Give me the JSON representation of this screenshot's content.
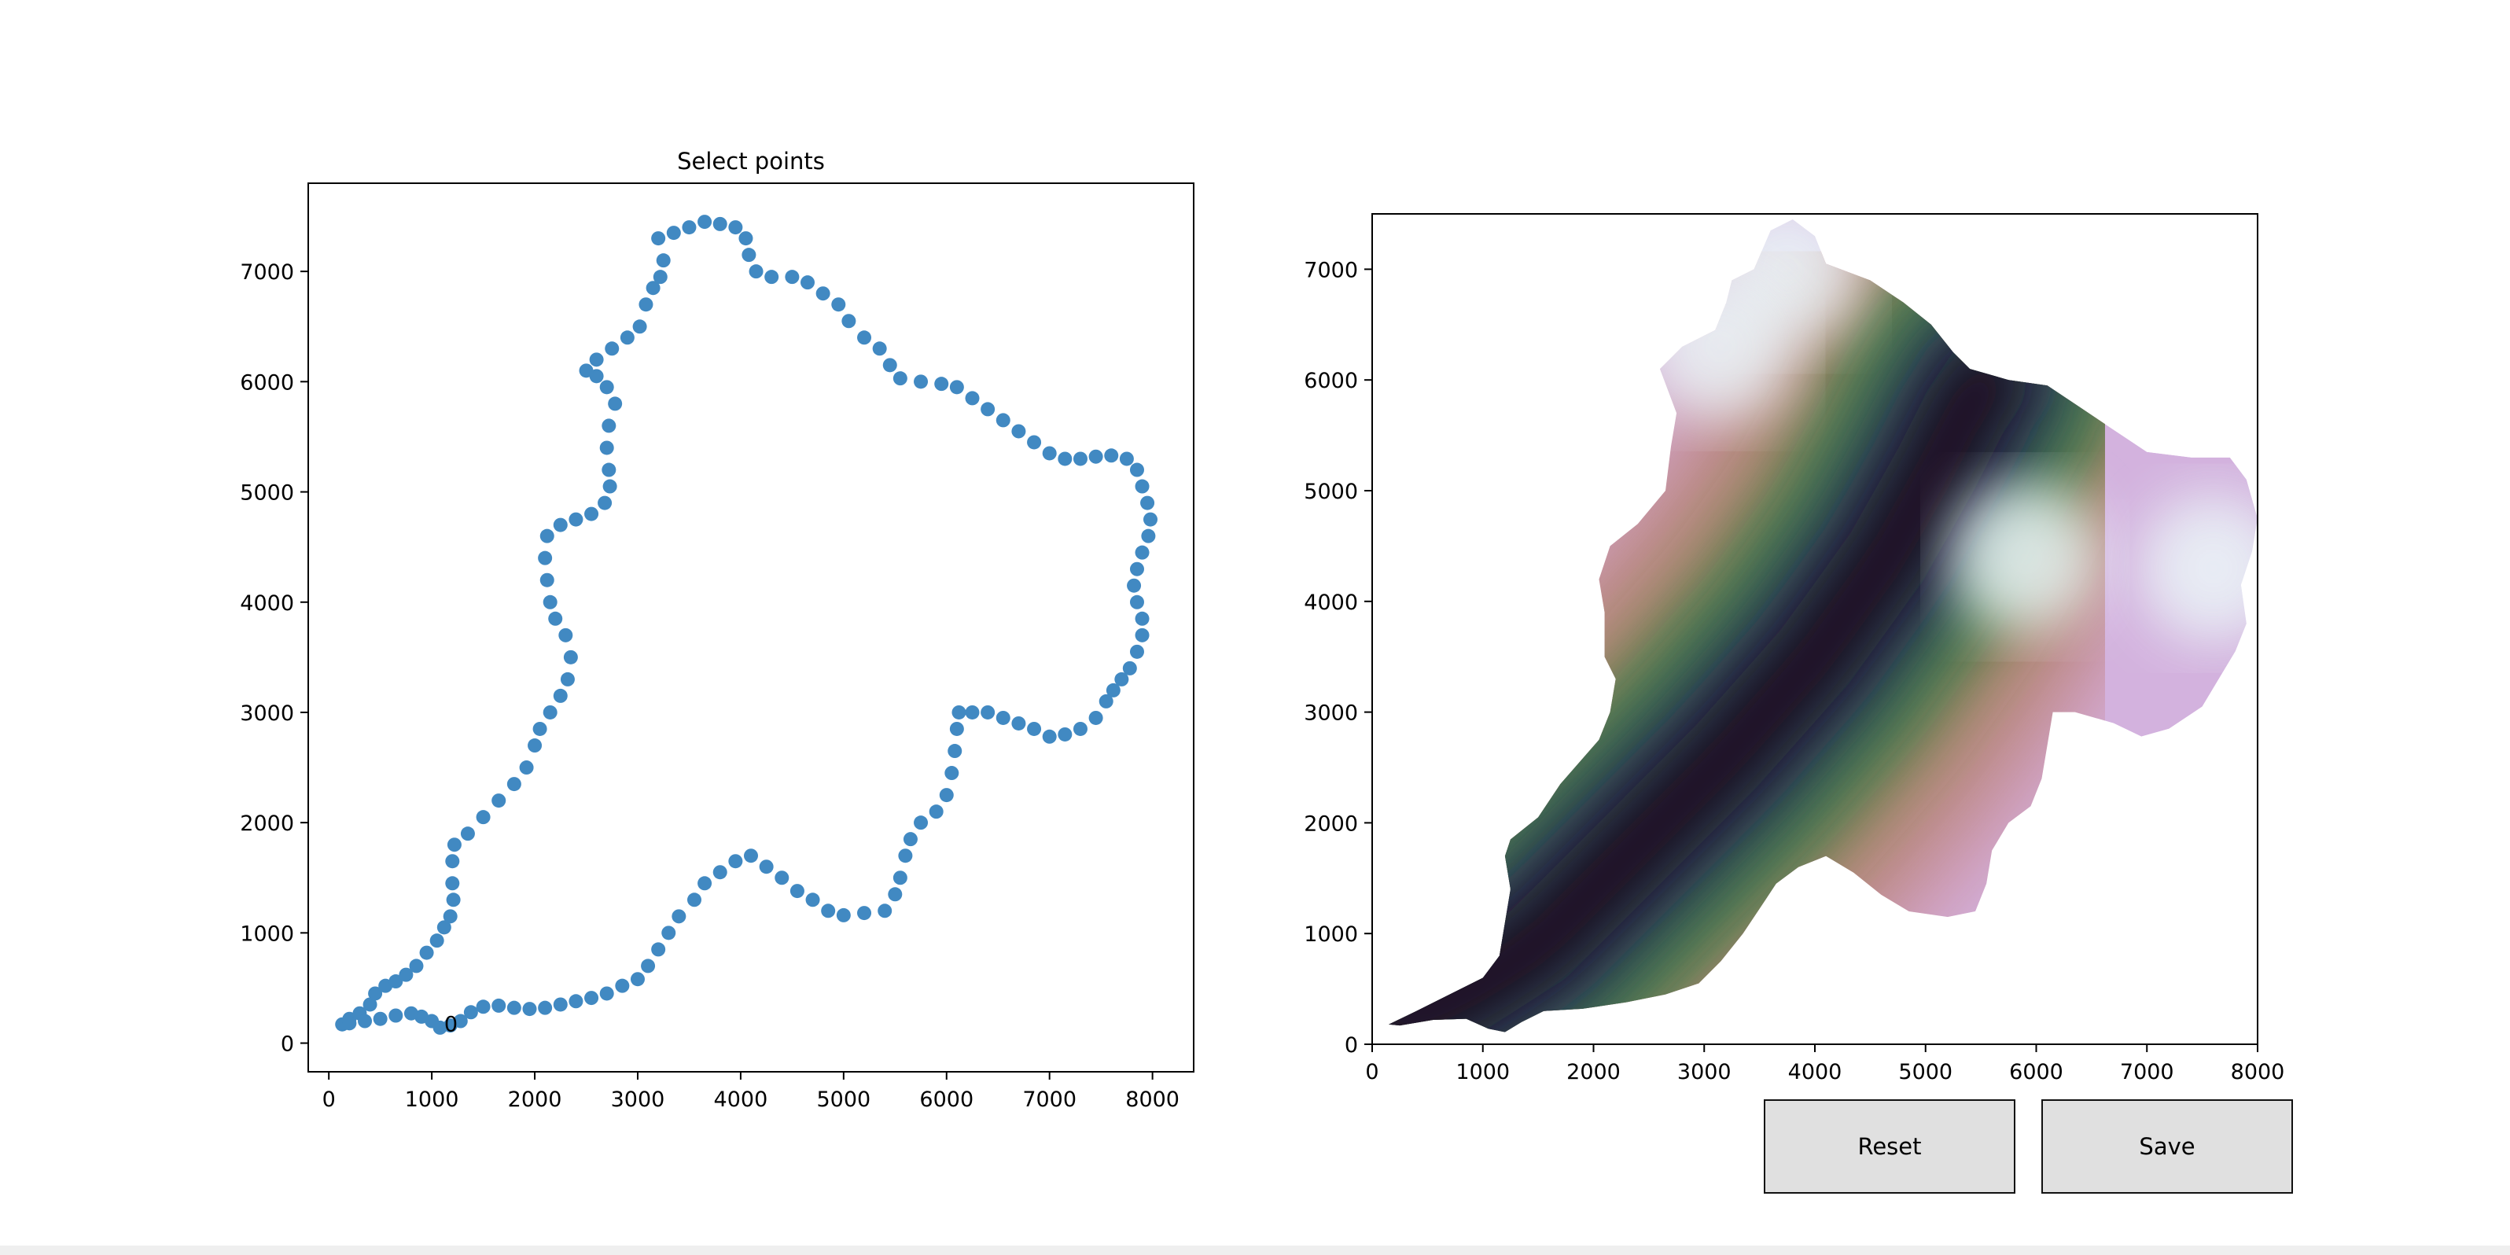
{
  "window": {
    "title": ""
  },
  "buttons": {
    "reset_label": "Reset",
    "save_label": "Save"
  },
  "colors": {
    "marker": "#4189c2",
    "axes": "#000000"
  },
  "chart_data": [
    {
      "type": "scatter",
      "title": "Select points",
      "xlabel": "",
      "ylabel": "",
      "xlim": [
        -200,
        8400
      ],
      "ylim": [
        -260,
        7800
      ],
      "xticks": [
        0,
        1000,
        2000,
        3000,
        4000,
        5000,
        6000,
        7000,
        8000
      ],
      "yticks": [
        0,
        1000,
        2000,
        3000,
        4000,
        5000,
        6000,
        7000
      ],
      "grid": false,
      "annotations": [
        {
          "text": "0",
          "x": 1120,
          "y": 180
        }
      ],
      "marker_color": "#4189c2",
      "series": [
        {
          "values": [
            [
              130,
              170
            ],
            [
              200,
              220
            ],
            [
              300,
              270
            ],
            [
              400,
              350
            ],
            [
              450,
              450
            ],
            [
              550,
              520
            ],
            [
              650,
              560
            ],
            [
              750,
              620
            ],
            [
              850,
              700
            ],
            [
              950,
              820
            ],
            [
              1050,
              930
            ],
            [
              1120,
              1050
            ],
            [
              1180,
              1150
            ],
            [
              1210,
              1300
            ],
            [
              1200,
              1450
            ],
            [
              1200,
              1650
            ],
            [
              1220,
              1800
            ],
            [
              1350,
              1900
            ],
            [
              1500,
              2050
            ],
            [
              1650,
              2200
            ],
            [
              1800,
              2350
            ],
            [
              1920,
              2500
            ],
            [
              2000,
              2700
            ],
            [
              2050,
              2850
            ],
            [
              2150,
              3000
            ],
            [
              2250,
              3150
            ],
            [
              2320,
              3300
            ],
            [
              2350,
              3500
            ],
            [
              2300,
              3700
            ],
            [
              2200,
              3850
            ],
            [
              2150,
              4000
            ],
            [
              2120,
              4200
            ],
            [
              2100,
              4400
            ],
            [
              2120,
              4600
            ],
            [
              2250,
              4700
            ],
            [
              2400,
              4750
            ],
            [
              2550,
              4800
            ],
            [
              2680,
              4900
            ],
            [
              2730,
              5050
            ],
            [
              2720,
              5200
            ],
            [
              2700,
              5400
            ],
            [
              2720,
              5600
            ],
            [
              2780,
              5800
            ],
            [
              2700,
              5950
            ],
            [
              2600,
              6050
            ],
            [
              2500,
              6100
            ],
            [
              2600,
              6200
            ],
            [
              2750,
              6300
            ],
            [
              2900,
              6400
            ],
            [
              3020,
              6500
            ],
            [
              3080,
              6700
            ],
            [
              3150,
              6850
            ],
            [
              3220,
              6950
            ],
            [
              3250,
              7100
            ],
            [
              3200,
              7300
            ],
            [
              3350,
              7350
            ],
            [
              3500,
              7400
            ],
            [
              3650,
              7450
            ],
            [
              3800,
              7430
            ],
            [
              3950,
              7400
            ],
            [
              4050,
              7300
            ],
            [
              4080,
              7150
            ],
            [
              4150,
              7000
            ],
            [
              4300,
              6950
            ],
            [
              4500,
              6950
            ],
            [
              4650,
              6900
            ],
            [
              4800,
              6800
            ],
            [
              4950,
              6700
            ],
            [
              5050,
              6550
            ],
            [
              5200,
              6400
            ],
            [
              5350,
              6300
            ],
            [
              5450,
              6150
            ],
            [
              5550,
              6030
            ],
            [
              5750,
              6000
            ],
            [
              5950,
              5980
            ],
            [
              6100,
              5950
            ],
            [
              6250,
              5850
            ],
            [
              6400,
              5750
            ],
            [
              6550,
              5650
            ],
            [
              6700,
              5550
            ],
            [
              6850,
              5450
            ],
            [
              7000,
              5350
            ],
            [
              7150,
              5300
            ],
            [
              7300,
              5300
            ],
            [
              7450,
              5320
            ],
            [
              7600,
              5330
            ],
            [
              7750,
              5300
            ],
            [
              7850,
              5200
            ],
            [
              7900,
              5050
            ],
            [
              7950,
              4900
            ],
            [
              7980,
              4750
            ],
            [
              7960,
              4600
            ],
            [
              7900,
              4450
            ],
            [
              7850,
              4300
            ],
            [
              7820,
              4150
            ],
            [
              7850,
              4000
            ],
            [
              7900,
              3850
            ],
            [
              7900,
              3700
            ],
            [
              7850,
              3550
            ],
            [
              7780,
              3400
            ],
            [
              7700,
              3300
            ],
            [
              7620,
              3200
            ],
            [
              7550,
              3100
            ],
            [
              7450,
              2950
            ],
            [
              7300,
              2850
            ],
            [
              7150,
              2800
            ],
            [
              7000,
              2780
            ],
            [
              6850,
              2850
            ],
            [
              6700,
              2900
            ],
            [
              6550,
              2950
            ],
            [
              6400,
              3000
            ],
            [
              6250,
              3000
            ],
            [
              6120,
              3000
            ],
            [
              6100,
              2850
            ],
            [
              6080,
              2650
            ],
            [
              6050,
              2450
            ],
            [
              6000,
              2250
            ],
            [
              5900,
              2100
            ],
            [
              5750,
              2000
            ],
            [
              5650,
              1850
            ],
            [
              5600,
              1700
            ],
            [
              5550,
              1500
            ],
            [
              5500,
              1350
            ],
            [
              5400,
              1200
            ],
            [
              5200,
              1180
            ],
            [
              5000,
              1160
            ],
            [
              4850,
              1200
            ],
            [
              4700,
              1300
            ],
            [
              4550,
              1380
            ],
            [
              4400,
              1500
            ],
            [
              4250,
              1600
            ],
            [
              4100,
              1700
            ],
            [
              3950,
              1650
            ],
            [
              3800,
              1550
            ],
            [
              3650,
              1450
            ],
            [
              3550,
              1300
            ],
            [
              3400,
              1150
            ],
            [
              3300,
              1000
            ],
            [
              3200,
              850
            ],
            [
              3100,
              700
            ],
            [
              3000,
              580
            ],
            [
              2850,
              520
            ],
            [
              2700,
              450
            ],
            [
              2550,
              410
            ],
            [
              2400,
              380
            ],
            [
              2250,
              350
            ],
            [
              2100,
              320
            ],
            [
              1950,
              310
            ],
            [
              1800,
              320
            ],
            [
              1650,
              340
            ],
            [
              1500,
              330
            ],
            [
              1380,
              280
            ],
            [
              1280,
              200
            ],
            [
              1180,
              160
            ],
            [
              1080,
              140
            ],
            [
              1000,
              200
            ],
            [
              900,
              240
            ],
            [
              800,
              270
            ],
            [
              650,
              250
            ],
            [
              500,
              220
            ],
            [
              350,
              200
            ],
            [
              200,
              180
            ]
          ]
        }
      ]
    },
    {
      "type": "heatmap",
      "title": "",
      "xlabel": "",
      "ylabel": "",
      "xlim": [
        0,
        8000
      ],
      "ylim": [
        0,
        7500
      ],
      "xticks": [
        0,
        1000,
        2000,
        3000,
        4000,
        5000,
        6000,
        7000,
        8000
      ],
      "yticks": [
        0,
        1000,
        2000,
        3000,
        4000,
        5000,
        6000,
        7000
      ],
      "grid": false,
      "colormap": "cubehelix",
      "colormap_stops": [
        "#1a1020",
        "#2e4a5b",
        "#4d7d4e",
        "#a08760",
        "#d08ba0",
        "#d3b2de",
        "#ebf6f8"
      ],
      "outline": [
        [
          150,
          180
        ],
        [
          400,
          300
        ],
        [
          700,
          450
        ],
        [
          1000,
          600
        ],
        [
          1150,
          800
        ],
        [
          1200,
          1100
        ],
        [
          1250,
          1400
        ],
        [
          1200,
          1700
        ],
        [
          1250,
          1850
        ],
        [
          1500,
          2050
        ],
        [
          1700,
          2350
        ],
        [
          2050,
          2750
        ],
        [
          2150,
          3000
        ],
        [
          2200,
          3300
        ],
        [
          2100,
          3500
        ],
        [
          2100,
          3900
        ],
        [
          2050,
          4200
        ],
        [
          2150,
          4500
        ],
        [
          2400,
          4700
        ],
        [
          2650,
          5000
        ],
        [
          2700,
          5400
        ],
        [
          2750,
          5700
        ],
        [
          2600,
          6100
        ],
        [
          2800,
          6300
        ],
        [
          3100,
          6450
        ],
        [
          3200,
          6700
        ],
        [
          3250,
          6900
        ],
        [
          3450,
          7000
        ],
        [
          3600,
          7350
        ],
        [
          3800,
          7450
        ],
        [
          4000,
          7300
        ],
        [
          4100,
          7050
        ],
        [
          4500,
          6900
        ],
        [
          4800,
          6700
        ],
        [
          5050,
          6500
        ],
        [
          5250,
          6250
        ],
        [
          5400,
          6100
        ],
        [
          5750,
          6000
        ],
        [
          6100,
          5950
        ],
        [
          6400,
          5750
        ],
        [
          6700,
          5550
        ],
        [
          7000,
          5350
        ],
        [
          7400,
          5300
        ],
        [
          7750,
          5300
        ],
        [
          7900,
          5100
        ],
        [
          8000,
          4750
        ],
        [
          7950,
          4450
        ],
        [
          7850,
          4150
        ],
        [
          7900,
          3800
        ],
        [
          7800,
          3550
        ],
        [
          7650,
          3300
        ],
        [
          7500,
          3050
        ],
        [
          7200,
          2850
        ],
        [
          6950,
          2780
        ],
        [
          6700,
          2900
        ],
        [
          6350,
          3000
        ],
        [
          6150,
          3000
        ],
        [
          6100,
          2700
        ],
        [
          6050,
          2400
        ],
        [
          5950,
          2150
        ],
        [
          5750,
          2000
        ],
        [
          5600,
          1750
        ],
        [
          5550,
          1450
        ],
        [
          5450,
          1200
        ],
        [
          5200,
          1150
        ],
        [
          4850,
          1200
        ],
        [
          4600,
          1350
        ],
        [
          4350,
          1550
        ],
        [
          4100,
          1700
        ],
        [
          3850,
          1600
        ],
        [
          3650,
          1450
        ],
        [
          3550,
          1300
        ],
        [
          3350,
          1000
        ],
        [
          3150,
          750
        ],
        [
          2950,
          550
        ],
        [
          2650,
          450
        ],
        [
          2300,
          380
        ],
        [
          1900,
          320
        ],
        [
          1550,
          300
        ],
        [
          1350,
          200
        ],
        [
          1200,
          110
        ],
        [
          1050,
          140
        ],
        [
          850,
          230
        ],
        [
          550,
          220
        ],
        [
          250,
          170
        ]
      ],
      "ridge": [
        [
          200,
          200
        ],
        [
          800,
          450
        ],
        [
          1500,
          900
        ],
        [
          2300,
          1700
        ],
        [
          3200,
          2600
        ],
        [
          4000,
          3500
        ],
        [
          4650,
          4400
        ],
        [
          5100,
          5200
        ],
        [
          5350,
          5700
        ],
        [
          5550,
          6000
        ]
      ]
    }
  ]
}
